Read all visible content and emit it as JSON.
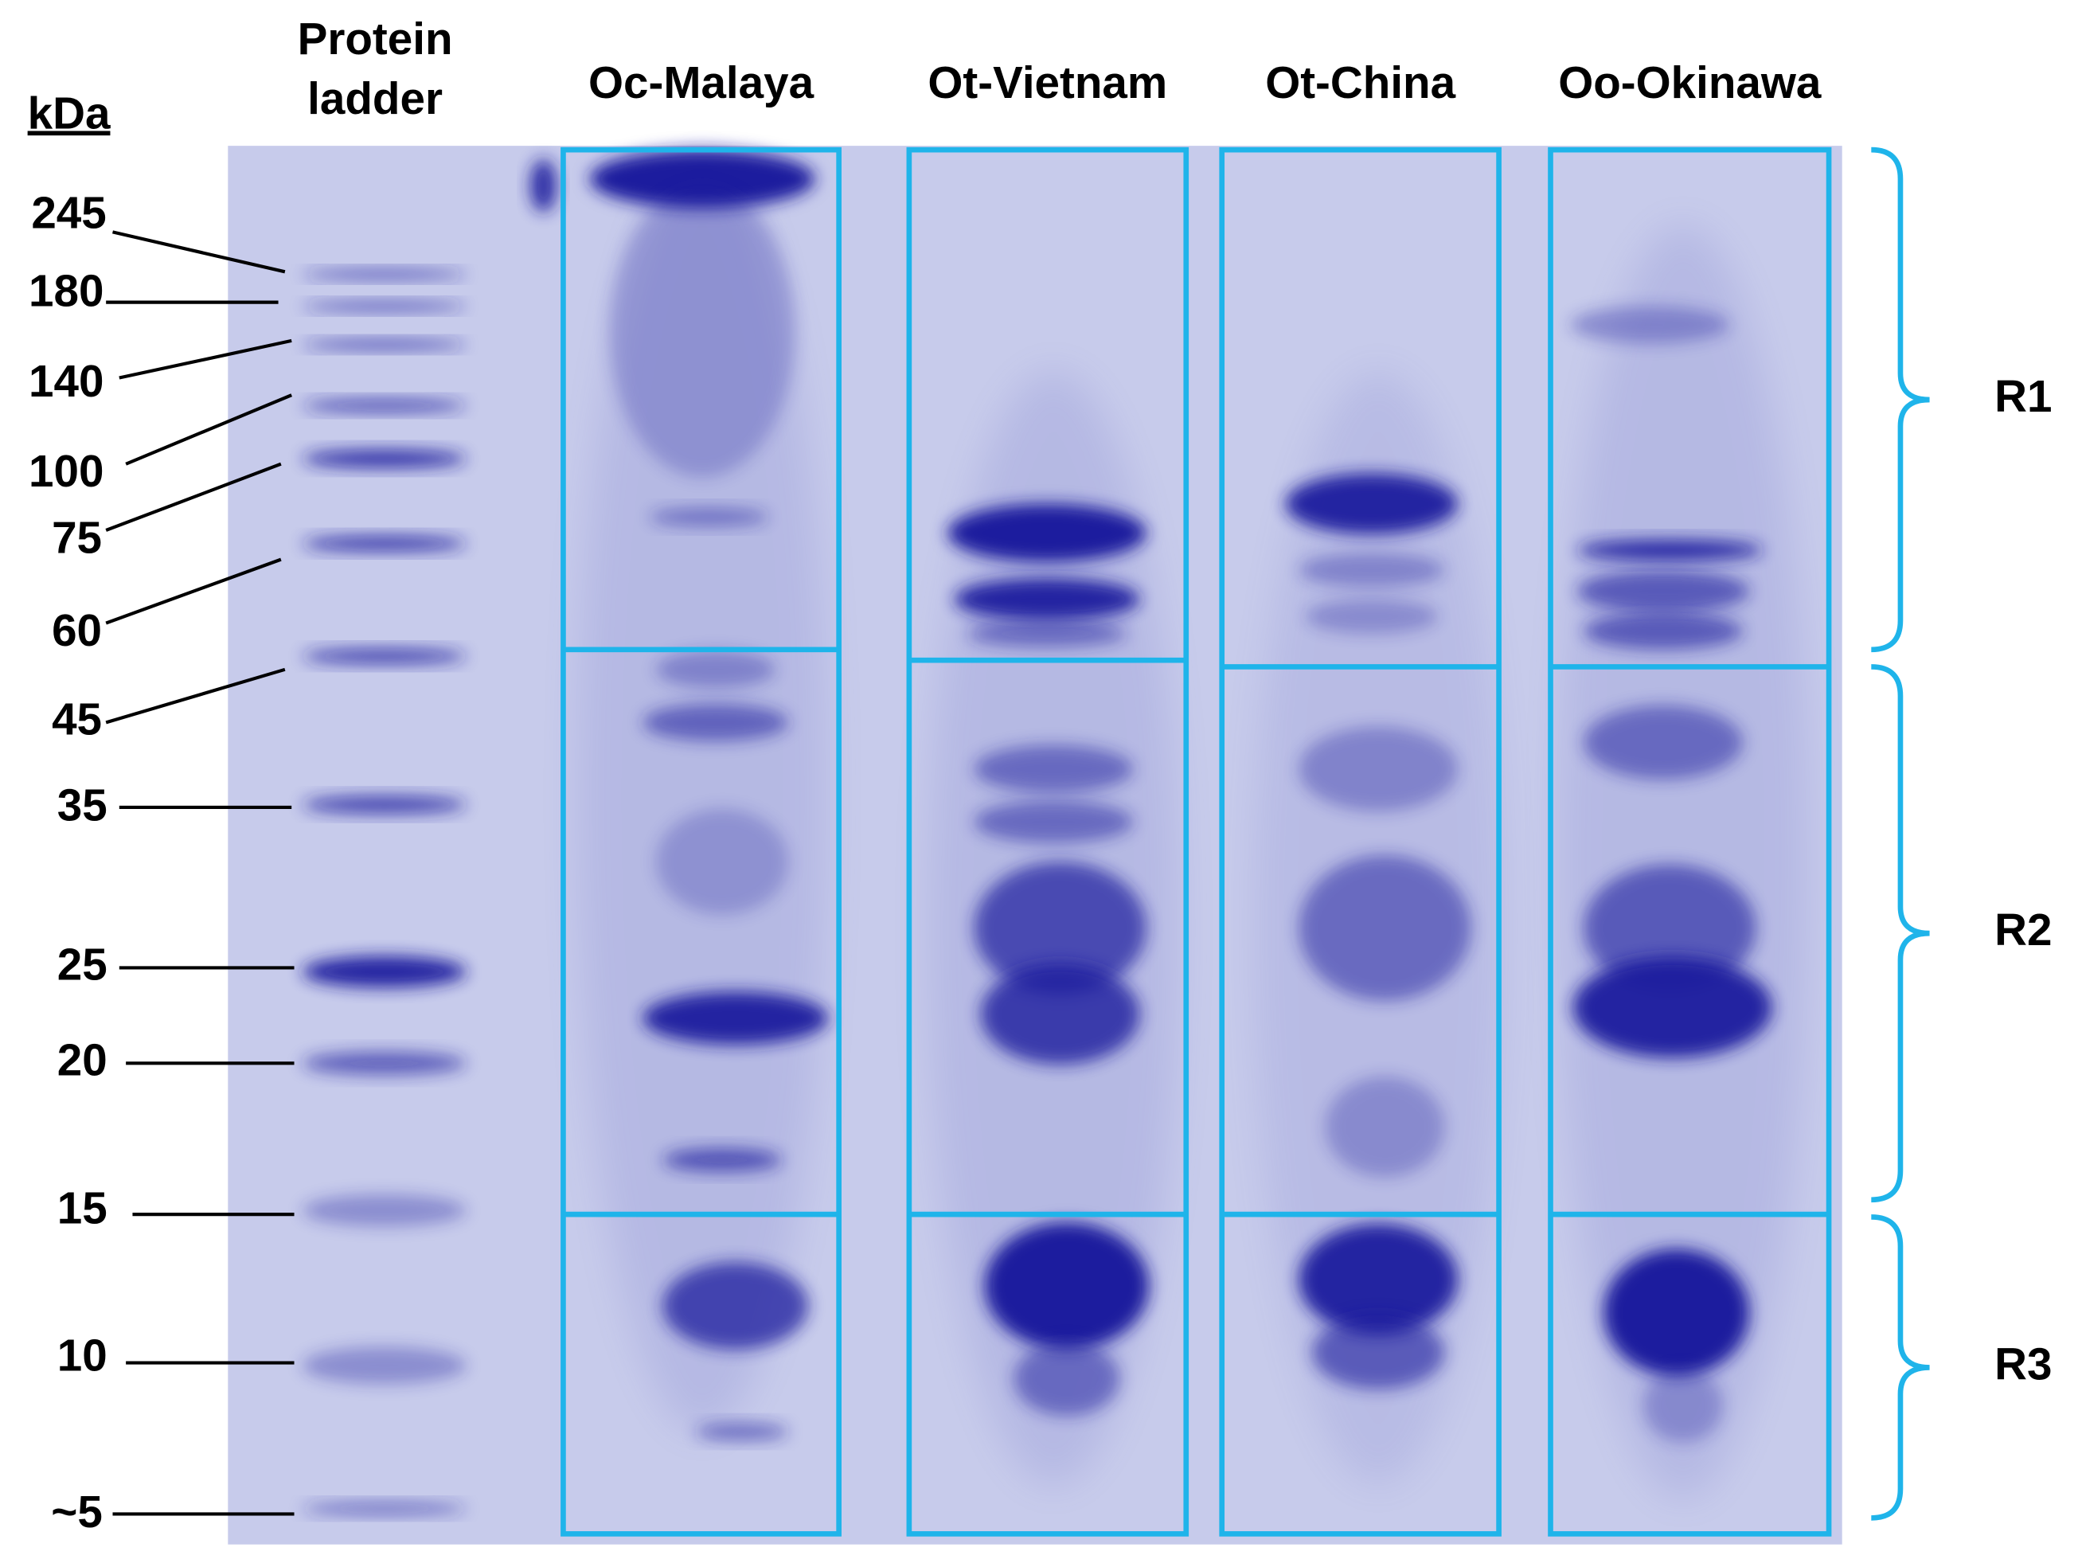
{
  "header": {
    "unit": "kDa",
    "ladder": [
      "Protein",
      "ladder"
    ]
  },
  "lanes": [
    "Oc-Malaya",
    "Ot-Vietnam",
    "Ot-China",
    "Oo-Okinawa"
  ],
  "markers": [
    "245",
    "180",
    "140",
    "100",
    "75",
    "60",
    "45",
    "35",
    "25",
    "20",
    "15",
    "10",
    "~5"
  ],
  "regions": [
    "R1",
    "R2",
    "R3"
  ]
}
